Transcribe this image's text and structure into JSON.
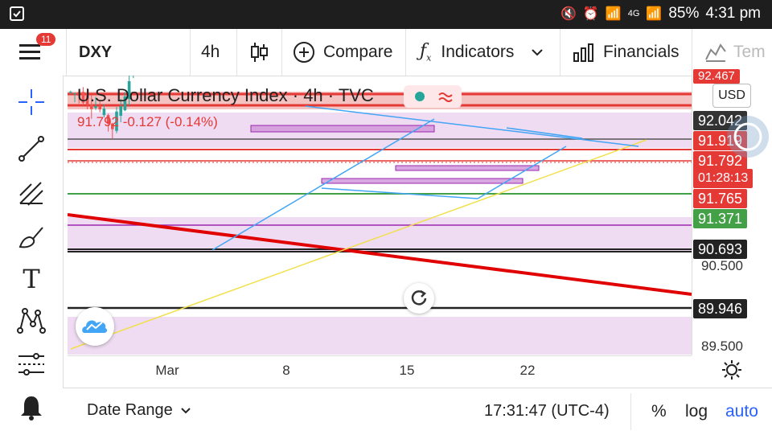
{
  "status_bar": {
    "battery": "85%",
    "time": "4:31 pm",
    "network": "4G"
  },
  "toolbar": {
    "notification_count": "11",
    "symbol": "DXY",
    "interval": "4h",
    "compare_label": "Compare",
    "indicators_label": "Indicators",
    "financials_label": "Financials",
    "templates_label": "Tem"
  },
  "legend": {
    "title": "U.S. Dollar Currency Index · 4h · TVC",
    "value_line": "91.792  -0.127 (-0.14%)",
    "currency": "USD"
  },
  "price_labels": {
    "p1": "92.467",
    "p2": "92.042",
    "p3": "91.919",
    "p4": "91.792",
    "countdown": "01:28:13",
    "p5": "91.765",
    "p6": "91.371",
    "p7": "90.693",
    "p8": "89.946",
    "tick_90500": "90.500",
    "tick_89500": "89.500"
  },
  "x_axis": {
    "t1": "Mar",
    "t2": "8",
    "t3": "15",
    "t4": "22"
  },
  "bottom_bar": {
    "date_range": "Date Range",
    "clock": "17:31:47 (UTC-4)",
    "percent": "%",
    "log": "log",
    "auto": "auto"
  },
  "colors": {
    "up": "#26a69a",
    "down": "#ef5350",
    "accent": "#2962ff",
    "zone": "#e1bee7"
  }
}
